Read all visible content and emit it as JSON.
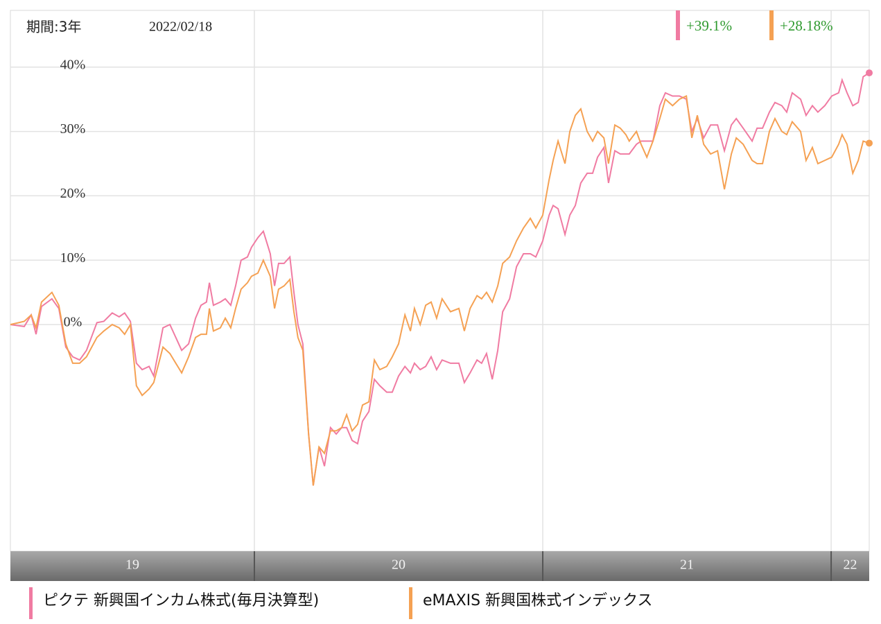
{
  "chart_data": {
    "type": "line",
    "period": "期間:3年",
    "date": "2022/02/18",
    "x": [
      2019.154,
      2019.202,
      2019.226,
      2019.243,
      2019.262,
      2019.298,
      2019.322,
      2019.346,
      2019.37,
      2019.394,
      2019.418,
      2019.454,
      2019.478,
      2019.507,
      2019.531,
      2019.55,
      2019.57,
      2019.591,
      2019.611,
      2019.635,
      2019.651,
      2019.683,
      2019.707,
      2019.748,
      2019.772,
      2019.796,
      2019.815,
      2019.834,
      2019.844,
      2019.858,
      2019.882,
      2019.899,
      2019.918,
      2019.935,
      2019.954,
      2019.976,
      2019.99,
      2020.012,
      2020.031,
      2020.055,
      2020.07,
      2020.084,
      2020.103,
      2020.123,
      2020.137,
      2020.151,
      2020.168,
      2020.188,
      2020.204,
      2020.224,
      2020.243,
      2020.264,
      2020.284,
      2020.303,
      2020.32,
      2020.339,
      2020.358,
      2020.375,
      2020.397,
      2020.416,
      2020.435,
      2020.459,
      2020.478,
      2020.5,
      2020.522,
      2020.541,
      2020.555,
      2020.575,
      2020.594,
      2020.613,
      2020.632,
      2020.651,
      2020.68,
      2020.709,
      2020.728,
      2020.748,
      2020.772,
      2020.788,
      2020.805,
      2020.825,
      2020.844,
      2020.861,
      2020.885,
      2020.909,
      2020.933,
      2020.957,
      2020.976,
      2021.0,
      2021.022,
      2021.036,
      2021.053,
      2021.077,
      2021.094,
      2021.113,
      2021.132,
      2021.154,
      2021.173,
      2021.19,
      2021.212,
      2021.228,
      2021.25,
      2021.269,
      2021.288,
      2021.3,
      2021.325,
      2021.341,
      2021.361,
      2021.382,
      2021.406,
      2021.425,
      2021.45,
      2021.474,
      2021.498,
      2021.517,
      2021.536,
      2021.558,
      2021.582,
      2021.606,
      2021.63,
      2021.654,
      2021.671,
      2021.695,
      2021.726,
      2021.743,
      2021.762,
      2021.786,
      2021.805,
      2021.829,
      2021.846,
      2021.865,
      2021.894,
      2021.913,
      2021.935,
      2021.954,
      2021.978,
      2022.002,
      2022.026,
      2022.038,
      2022.055,
      2022.075,
      2022.094,
      2022.111,
      2022.132
    ],
    "series": [
      {
        "name": "ピクテ 新興国インカム株式(毎月決算型)",
        "color": "#f07ba2",
        "value_label": "+39.1%",
        "values": [
          0,
          -0.3,
          1.5,
          -1.5,
          2.8,
          4,
          2.5,
          -3.5,
          -5,
          -5.5,
          -4,
          0.3,
          0.5,
          1.8,
          1.2,
          1.8,
          0.5,
          -6,
          -7,
          -6.5,
          -8,
          -0.5,
          0,
          -4,
          -3,
          1,
          3,
          3.5,
          6.5,
          3,
          3.5,
          4,
          3,
          6,
          10,
          10.5,
          12,
          13.5,
          14.5,
          11,
          6,
          9.5,
          9.5,
          10.5,
          5,
          0,
          -3,
          -17,
          -25,
          -19,
          -22,
          -16,
          -17,
          -16,
          -16,
          -18,
          -18.5,
          -15,
          -13.5,
          -8.5,
          -9.5,
          -10.5,
          -10.5,
          -8,
          -6.5,
          -7.5,
          -6,
          -7,
          -6.5,
          -5,
          -7,
          -5.5,
          -6,
          -6,
          -9,
          -7.5,
          -5.5,
          -6,
          -4.5,
          -8.5,
          -4,
          2,
          4,
          9,
          11,
          11,
          10.5,
          13,
          17,
          18.5,
          18,
          14,
          17,
          18.5,
          22,
          23.5,
          23.5,
          26,
          27.5,
          22,
          27,
          26.5,
          26.5,
          26.5,
          28,
          28.5,
          28.5,
          28.5,
          34,
          36,
          35.5,
          35.5,
          35,
          30,
          32,
          29,
          31,
          31,
          27,
          31,
          32,
          30.5,
          28.5,
          30.5,
          30.5,
          33,
          34.5,
          34,
          33,
          36,
          35,
          32.5,
          34,
          33,
          34,
          35.5,
          36,
          38,
          36,
          34,
          34.5,
          38.5,
          39.1
        ]
      },
      {
        "name": "eMAXIS 新興国株式インデックス",
        "color": "#f5a153",
        "value_label": "+28.18%",
        "values": [
          0,
          0.5,
          1.5,
          -0.5,
          3.5,
          5,
          3,
          -3,
          -6,
          -6,
          -5,
          -2,
          -1,
          0,
          -0.5,
          -1.5,
          0,
          -9.5,
          -11,
          -10,
          -9,
          -3.5,
          -4.5,
          -7.5,
          -5,
          -2,
          -1.5,
          -1.5,
          2.5,
          -1,
          -0.5,
          1,
          -0.5,
          2.5,
          5.5,
          6.5,
          7.5,
          8,
          10,
          7.5,
          2.5,
          5.5,
          6,
          7,
          2,
          -2,
          -4,
          -17,
          -25,
          -19,
          -20,
          -16.5,
          -16.5,
          -16,
          -14,
          -16.5,
          -15.5,
          -12.5,
          -12,
          -5.5,
          -7,
          -6.5,
          -5,
          -3,
          1.5,
          -1,
          2.5,
          0,
          3,
          3.5,
          1,
          4,
          2,
          2.5,
          -1,
          2.5,
          4.5,
          4,
          5,
          3.5,
          6,
          9.5,
          10.5,
          13,
          15,
          16.5,
          15,
          17,
          22.5,
          25.5,
          28.5,
          25,
          30,
          32.5,
          33.5,
          30,
          28.5,
          30,
          29,
          25,
          31,
          30.5,
          29.5,
          28.5,
          30,
          28,
          26,
          28.5,
          32,
          35,
          34,
          35,
          35.5,
          29,
          32.5,
          28,
          26.5,
          27,
          21,
          26.5,
          29,
          28,
          25.5,
          25,
          25,
          30,
          32,
          30,
          29.5,
          31.5,
          30,
          25.5,
          27.5,
          25,
          25.5,
          26,
          28,
          29.5,
          28,
          23.5,
          25.5,
          28.5,
          28.18
        ]
      }
    ],
    "xlim": [
      2019.154,
      2022.132
    ],
    "xticks": [
      2020,
      2021,
      2022
    ],
    "year_labels": [
      "19",
      "20",
      "21",
      "22"
    ],
    "ylim": [
      -35.2,
      48.8
    ],
    "yticks": [
      {
        "value": 0,
        "label": "0%"
      },
      {
        "value": 10,
        "label": "10%"
      },
      {
        "value": 20,
        "label": "20%"
      },
      {
        "value": 30,
        "label": "30%"
      },
      {
        "value": 40,
        "label": "40%"
      }
    ],
    "grid": true
  }
}
